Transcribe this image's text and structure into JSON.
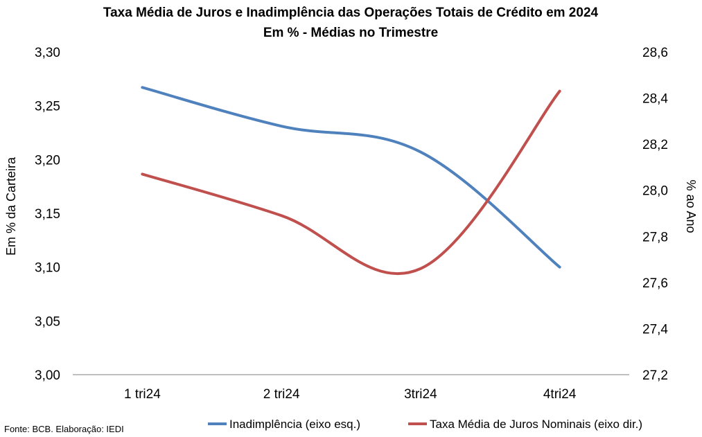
{
  "chart_data": {
    "type": "line",
    "title": "Taxa Média de Juros e Inadimplência das Operações Totais de Crédito em 2024",
    "subtitle": "Em % - Médias no Trimestre",
    "categories": [
      "1 tri24",
      "2 tri24",
      "3tri24",
      "4tri24"
    ],
    "ylabel_left": "Em % da Carteira",
    "ylabel_right": "% ao Ano",
    "ylim_left": [
      3.0,
      3.3
    ],
    "ylim_right": [
      27.2,
      28.6
    ],
    "yticks_left": [
      "3,00",
      "3,05",
      "3,10",
      "3,15",
      "3,20",
      "3,25",
      "3,30"
    ],
    "yticks_right": [
      "27,2",
      "27,4",
      "27,6",
      "27,8",
      "28,0",
      "28,2",
      "28,4",
      "28,6"
    ],
    "series": [
      {
        "name": "Inadimplência (eixo esq.)",
        "axis": "left",
        "color": "#4F81BD",
        "values": [
          3.267,
          3.231,
          3.207,
          3.1
        ]
      },
      {
        "name": "Taxa Média de Juros Nominais (eixo dir.)",
        "axis": "right",
        "color": "#C0504D",
        "values": [
          28.07,
          27.89,
          27.66,
          28.43
        ]
      }
    ],
    "grid": false,
    "legend_position": "bottom-right",
    "source": "Fonte: BCB. Elaboração: IEDI"
  }
}
